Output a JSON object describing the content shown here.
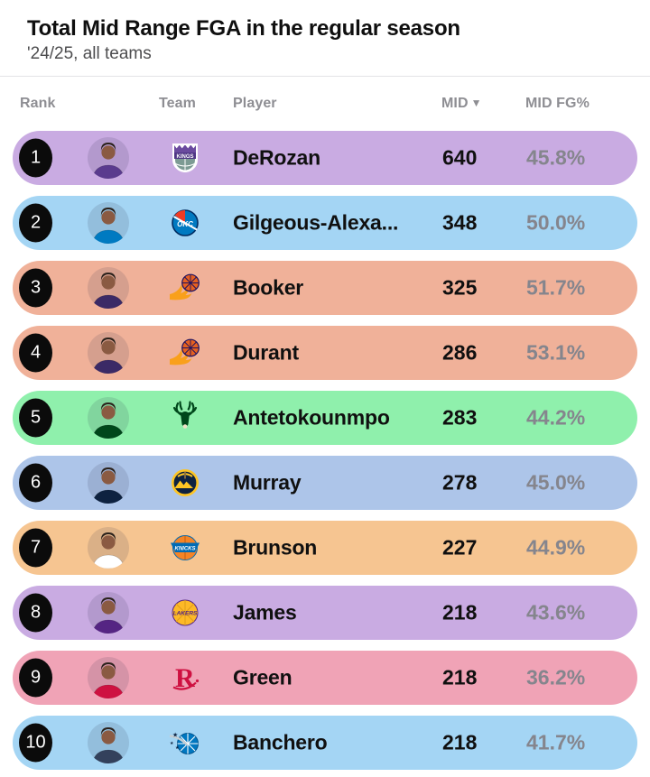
{
  "header": {
    "title": "Total Mid Range FGA in the regular season",
    "subtitle": "'24/25, all teams"
  },
  "table": {
    "columns": {
      "rank": "Rank",
      "team": "Team",
      "player": "Player",
      "mid": "MID",
      "sort_indicator": "▼",
      "mid_fg": "MID FG%"
    }
  },
  "rows": [
    {
      "rank": "1",
      "player": "DeRozan",
      "mid": "640",
      "fg": "45.8%",
      "team": "Sacramento Kings",
      "team_key": "kings",
      "row_color": "#c9abe2",
      "team_color": "#5a3b8e"
    },
    {
      "rank": "2",
      "player": "Gilgeous-Alexa...",
      "mid": "348",
      "fg": "50.0%",
      "team": "Oklahoma City Thunder",
      "team_key": "thunder",
      "row_color": "#a4d5f4",
      "team_color": "#007ac1"
    },
    {
      "rank": "3",
      "player": "Booker",
      "mid": "325",
      "fg": "51.7%",
      "team": "Phoenix Suns",
      "team_key": "suns",
      "row_color": "#f0b199",
      "team_color": "#3b2a66"
    },
    {
      "rank": "4",
      "player": "Durant",
      "mid": "286",
      "fg": "53.1%",
      "team": "Phoenix Suns",
      "team_key": "suns",
      "row_color": "#f0b199",
      "team_color": "#3b2a66"
    },
    {
      "rank": "5",
      "player": "Antetokounmpo",
      "mid": "283",
      "fg": "44.2%",
      "team": "Milwaukee Bucks",
      "team_key": "bucks",
      "row_color": "#8ff0ac",
      "team_color": "#00471b"
    },
    {
      "rank": "6",
      "player": "Murray",
      "mid": "278",
      "fg": "45.0%",
      "team": "Denver Nuggets",
      "team_key": "nuggets",
      "row_color": "#adc5e9",
      "team_color": "#0e2240"
    },
    {
      "rank": "7",
      "player": "Brunson",
      "mid": "227",
      "fg": "44.9%",
      "team": "New York Knicks",
      "team_key": "knicks",
      "row_color": "#f6c591",
      "team_color": "#ffffff"
    },
    {
      "rank": "8",
      "player": "James",
      "mid": "218",
      "fg": "43.6%",
      "team": "Los Angeles Lakers",
      "team_key": "lakers",
      "row_color": "#c9abe2",
      "team_color": "#552583"
    },
    {
      "rank": "9",
      "player": "Green",
      "mid": "218",
      "fg": "36.2%",
      "team": "Houston Rockets",
      "team_key": "rockets",
      "row_color": "#f0a3b6",
      "team_color": "#ce1141"
    },
    {
      "rank": "10",
      "player": "Banchero",
      "mid": "218",
      "fg": "41.7%",
      "team": "Orlando Magic",
      "team_key": "magic",
      "row_color": "#a4d5f4",
      "team_color": "#33415c"
    }
  ],
  "colors": {
    "text_primary": "#101010",
    "subtitle_gray": "#4d4d4f",
    "header_gray": "#8e8e93",
    "fg_percent_gray": "#85858d",
    "badge_bg": "#0b0b0b",
    "badge_text": "#ffffff",
    "divider": "#e3e3e6",
    "background": "#ffffff"
  }
}
